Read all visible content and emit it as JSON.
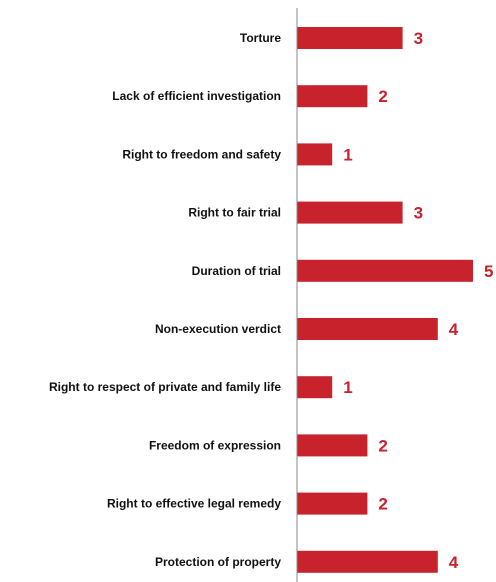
{
  "chart_data": {
    "type": "bar",
    "orientation": "horizontal",
    "categories": [
      "Torture",
      "Lack of efficient investigation",
      "Right to freedom and safety",
      "Right to fair trial",
      "Duration of trial",
      "Non-execution verdict",
      "Right to respect of private and family life",
      "Freedom of expression",
      "Right to effective legal remedy",
      "Protection of property"
    ],
    "values": [
      3,
      2,
      1,
      3,
      5,
      4,
      1,
      2,
      2,
      4
    ],
    "data_labels": [
      "3",
      "2",
      "1",
      "3",
      "5",
      "4",
      "1",
      "2",
      "2",
      "4"
    ],
    "xlim": [
      0,
      5
    ],
    "grid": false,
    "legend": "none",
    "colors": {
      "bar": "#c8222c",
      "value_label": "#c8222c",
      "axis": "#888888",
      "category_label": "#111111"
    }
  }
}
